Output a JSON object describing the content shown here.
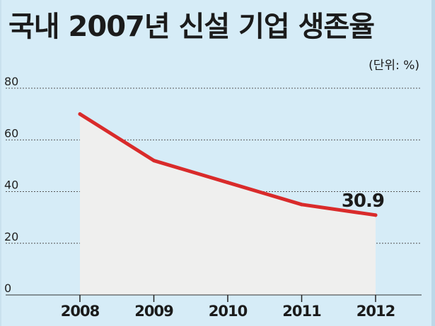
{
  "title": "국내 2007년 신설 기업 생존율",
  "unit_label": "(단위: %)",
  "chart_data": {
    "type": "area",
    "title": "국내 2007년 신설 기업 생존율",
    "unit": "(단위: %)",
    "x": [
      "2008",
      "2009",
      "2010",
      "2011",
      "2012"
    ],
    "series": [
      {
        "values": [
          70,
          52,
          43.5,
          35,
          30.9
        ]
      }
    ],
    "yticks": [
      0,
      20,
      40,
      60,
      80
    ],
    "ylim": [
      0,
      80
    ],
    "grid": true,
    "annotations": [
      {
        "x": "2012",
        "text": "30.9"
      }
    ],
    "colors": {
      "line": "#d92b2b",
      "area": "#efefee",
      "grid": "#555555",
      "background": "#d6ecf7"
    }
  }
}
